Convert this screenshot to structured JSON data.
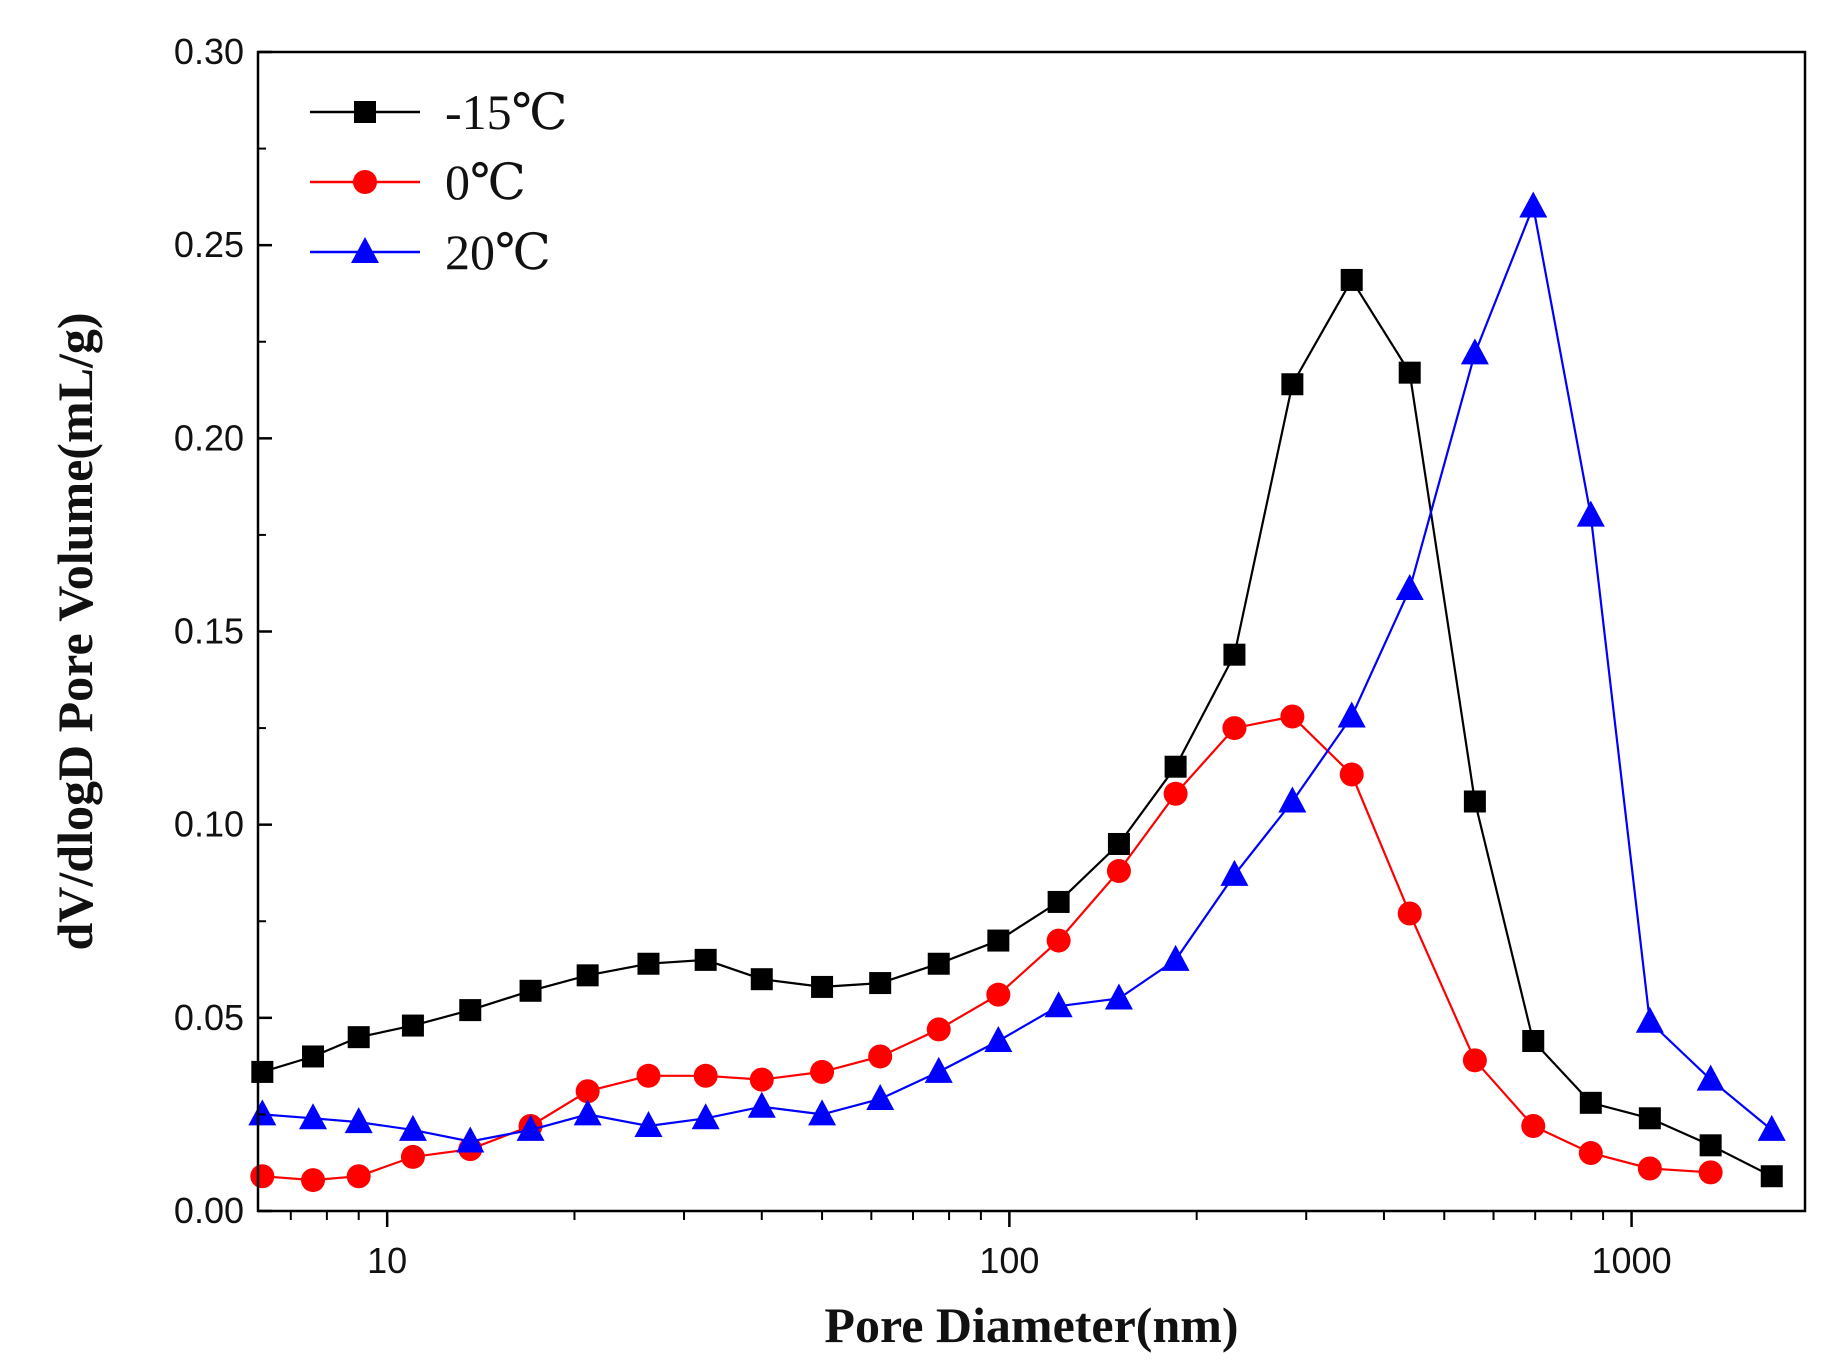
{
  "chart_data": {
    "type": "line",
    "title": "",
    "xlabel": "Pore Diameter(nm)",
    "ylabel": "dV/dlogD Pore Volume(mL/g)",
    "xscale": "log",
    "xlim": [
      6.2,
      1900
    ],
    "ylim": [
      0,
      0.3
    ],
    "xticks": [
      10,
      100,
      1000
    ],
    "xtick_labels": [
      "10",
      "100",
      "1000"
    ],
    "yticks": [
      0,
      0.05,
      0.1,
      0.15,
      0.2,
      0.25,
      0.3
    ],
    "ytick_labels": [
      "0.00",
      "0.05",
      "0.10",
      "0.15",
      "0.20",
      "0.25",
      "0.30"
    ],
    "legend_position": "top-left",
    "series": [
      {
        "name": "-15℃",
        "color": "#000000",
        "marker": "square",
        "x": [
          6.3,
          7.6,
          9.0,
          11.0,
          13.6,
          17.0,
          21.0,
          26.3,
          32.5,
          40.0,
          50.0,
          62.0,
          77.0,
          96.0,
          120,
          150,
          185,
          230,
          285,
          355,
          440,
          560,
          695,
          860,
          1070,
          1340,
          1680
        ],
        "y": [
          0.036,
          0.04,
          0.045,
          0.048,
          0.052,
          0.057,
          0.061,
          0.064,
          0.065,
          0.06,
          0.058,
          0.059,
          0.064,
          0.07,
          0.08,
          0.095,
          0.115,
          0.144,
          0.214,
          0.241,
          0.217,
          0.106,
          0.044,
          0.028,
          0.024,
          0.017,
          0.009
        ]
      },
      {
        "name": "0℃",
        "color": "#ff0000",
        "marker": "circle",
        "x": [
          6.3,
          7.6,
          9.0,
          11.0,
          13.6,
          17.0,
          21.0,
          26.3,
          32.5,
          40.0,
          50.0,
          62.0,
          77.0,
          96.0,
          120,
          150,
          185,
          230,
          285,
          355,
          440,
          560,
          695,
          860,
          1070,
          1340
        ],
        "y": [
          0.009,
          0.008,
          0.009,
          0.014,
          0.016,
          0.022,
          0.031,
          0.035,
          0.035,
          0.034,
          0.036,
          0.04,
          0.047,
          0.056,
          0.07,
          0.088,
          0.108,
          0.125,
          0.128,
          0.113,
          0.077,
          0.039,
          0.022,
          0.015,
          0.011,
          0.01
        ]
      },
      {
        "name": "20℃",
        "color": "#0000ff",
        "marker": "triangle",
        "x": [
          6.3,
          7.6,
          9.0,
          11.0,
          13.6,
          17.0,
          21.0,
          26.3,
          32.5,
          40.0,
          50.0,
          62.0,
          77.0,
          96.0,
          120,
          150,
          185,
          230,
          285,
          355,
          440,
          560,
          695,
          860,
          1070,
          1340,
          1680
        ],
        "y": [
          0.025,
          0.024,
          0.023,
          0.021,
          0.018,
          0.021,
          0.025,
          0.022,
          0.024,
          0.027,
          0.025,
          0.029,
          0.036,
          0.044,
          0.053,
          0.055,
          0.065,
          0.087,
          0.106,
          0.128,
          0.161,
          0.222,
          0.26,
          0.18,
          0.049,
          0.034,
          0.021
        ]
      }
    ]
  }
}
